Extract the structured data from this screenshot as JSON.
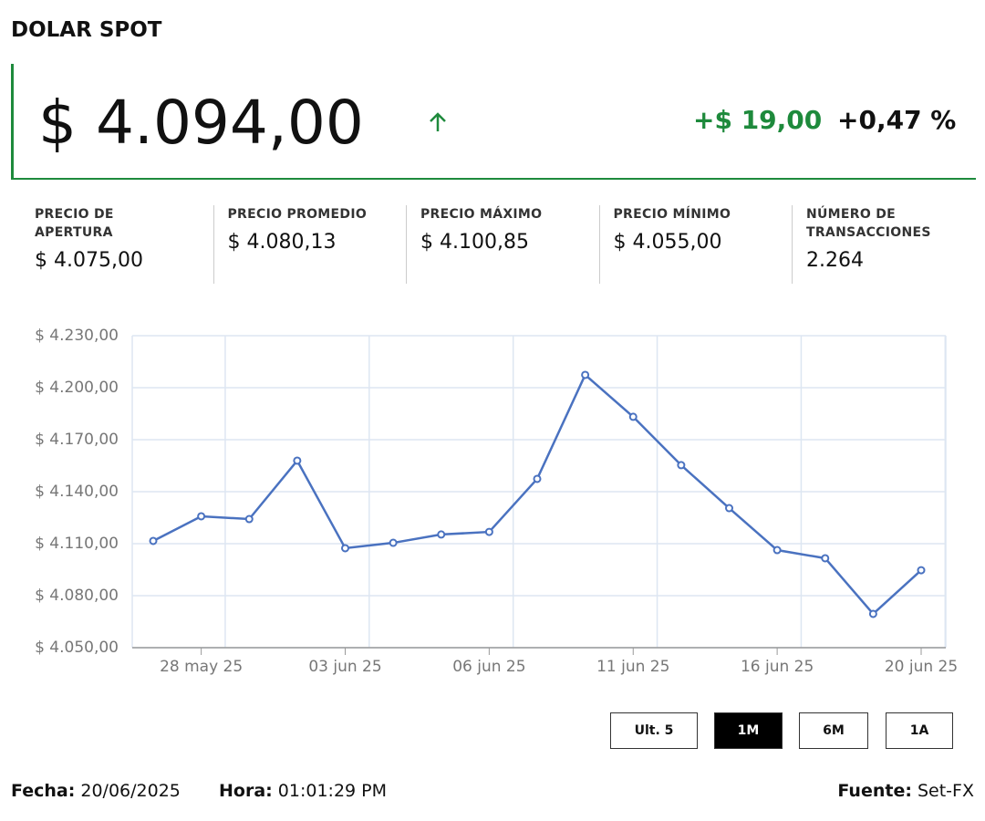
{
  "header": {
    "title": "DOLAR SPOT",
    "price": "$ 4.094,00",
    "change": "+$ 19,00",
    "change_pct": "+0,47 %"
  },
  "stats": [
    {
      "label": "PRECIO DE APERTURA",
      "value": "$ 4.075,00"
    },
    {
      "label": "PRECIO PROMEDIO",
      "value": "$ 4.080,13"
    },
    {
      "label": "PRECIO MÁXIMO",
      "value": "$ 4.100,85"
    },
    {
      "label": "PRECIO MÍNIMO",
      "value": "$ 4.055,00"
    },
    {
      "label": "NÚMERO DE TRANSACCIONES",
      "value": "2.264"
    }
  ],
  "chart_data": {
    "type": "line",
    "categories": [
      null,
      "28 may 25",
      null,
      null,
      "03 jun 25",
      null,
      null,
      "06 jun 25",
      null,
      null,
      "11 jun 25",
      null,
      null,
      "16 jun 25",
      null,
      null,
      "20 jun 25"
    ],
    "values": [
      4111.6,
      4125.8,
      4124.2,
      4157.9,
      4107.4,
      4110.5,
      4115.3,
      4116.8,
      4147.4,
      4207.4,
      4183.2,
      4155.3,
      4130.5,
      4106.3,
      4101.6,
      4069.5,
      4094.7
    ],
    "color": "#4a72c0",
    "ylim": [
      4050,
      4230
    ],
    "yticks": [
      {
        "value": 4050,
        "label": "$ 4.050,00"
      },
      {
        "value": 4080,
        "label": "$ 4.080,00"
      },
      {
        "value": 4110,
        "label": "$ 4.110,00"
      },
      {
        "value": 4140,
        "label": "$ 4.140,00"
      },
      {
        "value": 4170,
        "label": "$ 4.170,00"
      },
      {
        "value": 4200,
        "label": "$ 4.200,00"
      },
      {
        "value": 4230,
        "label": "$ 4.230,00"
      }
    ],
    "grid": true
  },
  "range_buttons": {
    "options": [
      "Ult. 5",
      "1M",
      "6M",
      "1A"
    ],
    "selected": 1
  },
  "footer": {
    "date_label": "Fecha:",
    "date": "20/06/2025",
    "time_label": "Hora:",
    "time": "01:01:29 PM",
    "source_label": "Fuente:",
    "source": "Set-FX"
  }
}
